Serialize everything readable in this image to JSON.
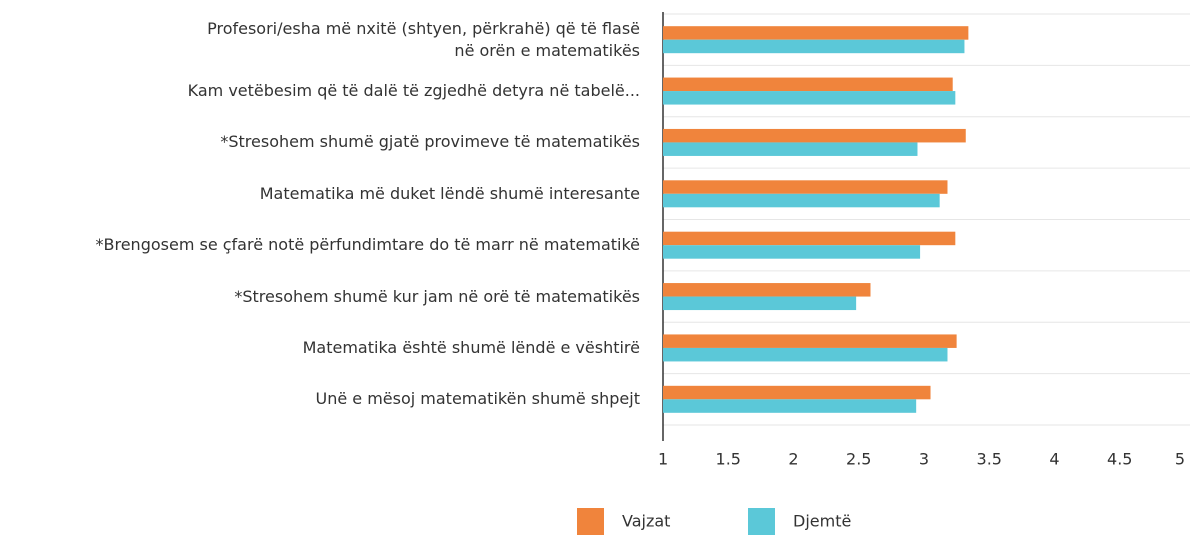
{
  "chart_data": {
    "type": "bar",
    "orientation": "horizontal",
    "categories": [
      "Profesori/esha më nxitë (shtyen, përkrahë) që të flasë\nnë orën e matematikës",
      "Kam vetëbesim që të dalë të zgjedhë detyra në tabelë...",
      "*Stresohem shumë gjatë provimeve të matematikës",
      "Matematika më duket lëndë shumë interesante",
      "*Brengosem se çfarë notë përfundimtare do të marr në matematikë",
      "*Stresohem shumë kur jam në orë të matematikës",
      "Matematika është shumë lëndë e vështirë",
      "Unë e mësoj matematikën shumë shpejt"
    ],
    "series": [
      {
        "name": "Vajzat",
        "color": "#f0843c",
        "values": [
          3.34,
          3.22,
          3.32,
          3.18,
          3.24,
          2.59,
          3.25,
          3.05
        ]
      },
      {
        "name": "Djemtë",
        "color": "#5bc8d8",
        "values": [
          3.31,
          3.24,
          2.95,
          3.12,
          2.97,
          2.48,
          3.18,
          2.94
        ]
      }
    ],
    "xlim": [
      1,
      5
    ],
    "xticks": [
      1,
      1.5,
      2,
      2.5,
      3,
      3.5,
      4,
      4.5,
      5
    ],
    "legend": "bottom"
  }
}
